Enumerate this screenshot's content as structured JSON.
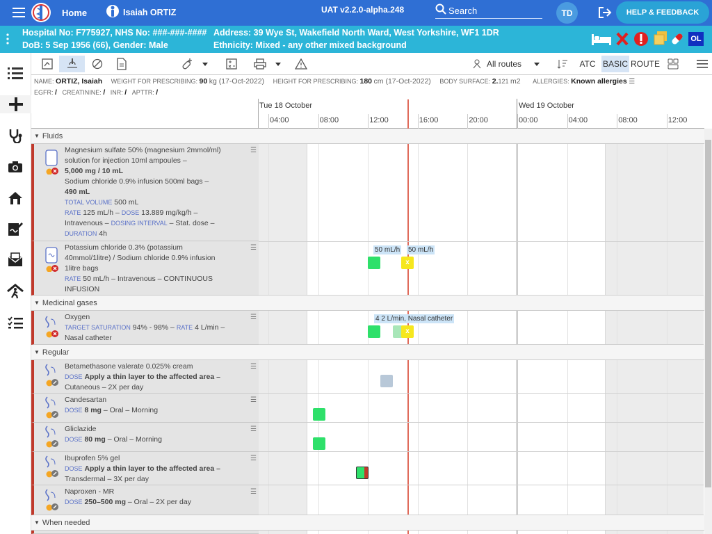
{
  "topbar": {
    "menu_icon": "hamburger-icon",
    "home": "Home",
    "patient_name": "Isaiah ORTIZ",
    "version": "UAT v2.2.0-alpha.248",
    "search": "Search",
    "user_initials": "TD",
    "help": "HELP & FEEDBACK"
  },
  "patient": {
    "hospital_no": "Hospital No: F775927, NHS No: ###-###-####",
    "dob": "DoB: 5 Sep 1956 (66), Gender: Male",
    "address": "Address: 39 Wye St, Wakefield North Ward, West Yorkshire, WF1 1DR",
    "ethnicity": "Ethnicity: Mixed - any other mixed background",
    "badge_ol": "OL"
  },
  "toolbar": {
    "routes": "All routes",
    "atc": "ATC",
    "basic": "BASIC",
    "route": "ROUTE"
  },
  "info": {
    "name_label": "NAME:",
    "name": "ORTIZ, Isaiah",
    "weight_label": "WEIGHT FOR PRESCRIBING:",
    "weight": "90",
    "weight_unit": "kg (17-Oct-2022)",
    "height_label": "HEIGHT FOR PRESCRIBING:",
    "height": "180",
    "height_unit": "cm (17-Oct-2022)",
    "bsa_label": "BODY SURFACE:",
    "bsa": "2.",
    "bsa_small": "121",
    "bsa_unit": "m2",
    "allergies_label": "ALLERGIES:",
    "allergies": "Known allergies",
    "egfr": "EGFR:",
    "egfr_v": "/",
    "creat": "CREATININE:",
    "creat_v": "/",
    "inr": "INR:",
    "inr_v": "/",
    "apttr": "APTTR:",
    "apttr_v": "/"
  },
  "timeline": {
    "day1": "Tue 18 October",
    "day2": "Wed 19 October",
    "times": [
      "04:00",
      "08:00",
      "12:00",
      "16:00",
      "20:00",
      "00:00",
      "04:00",
      "08:00",
      "12:00"
    ]
  },
  "sections": [
    "Fluids",
    "Medicinal gases",
    "Regular",
    "When needed"
  ],
  "meds": {
    "mag": {
      "l1": "Magnesium sulfate 50% (magnesium 2mmol/ml)",
      "l2": "solution for injection 10ml ampoules –",
      "l3": "5,000 mg / 10 mL",
      "l4": "Sodium chloride 0.9% infusion 500ml bags –",
      "l5": "490 mL",
      "tv_label": "TOTAL VOLUME",
      "tv": "500 mL",
      "rate_label": "RATE",
      "rate": "125 mL/h –",
      "dose_label": "DOSE",
      "dose": "13.889 mg/kg/h –",
      "route": "Intravenous –",
      "di_label": "DOSING INTERVAL",
      "di": "– Stat. dose –",
      "dur_label": "DURATION",
      "dur": "4h"
    },
    "kcl": {
      "l1": "Potassium chloride 0.3% (potassium",
      "l2": "40mmol/1litre) / Sodium chloride 0.9% infusion",
      "l3": "1litre bags",
      "rate_label": "RATE",
      "rate": "50 mL/h – Intravenous – CONTINUOUS",
      "l5": "INFUSION",
      "note1": "50 mL/h",
      "note2": "50 mL/h"
    },
    "oxy": {
      "l1": "Oxygen",
      "ts_label": "TARGET SATURATION",
      "ts": "94% - 98% –",
      "rate_label": "RATE",
      "rate": "4 L/min –",
      "l3": "Nasal catheter",
      "note": "4 2 L/min, Nasal catheter"
    },
    "beta": {
      "l1": "Betamethasone valerate 0.025% cream",
      "dose_label": "DOSE",
      "dose": "Apply a thin layer to the affected area –",
      "l3": "Cutaneous – 2X per day"
    },
    "cand": {
      "l1": "Candesartan",
      "dose_label": "DOSE",
      "dose": "8 mg",
      "rest": "– Oral – Morning"
    },
    "glic": {
      "l1": "Gliclazide",
      "dose_label": "DOSE",
      "dose": "80 mg",
      "rest": "– Oral – Morning"
    },
    "ibu": {
      "l1": "Ibuprofen 5% gel",
      "dose_label": "DOSE",
      "dose": "Apply a thin layer to the affected area –",
      "l3": "Transdermal – 3X per day"
    },
    "nap": {
      "l1": "Naproxen - MR",
      "dose_label": "DOSE",
      "dose": "250–500 mg",
      "rest": "– Oral – 2X per day"
    }
  },
  "colors": {
    "topbar": "#2f6fd4",
    "patbar": "#2cb5d8",
    "given": "#2ee06a",
    "due": "#f6e71e",
    "now_line": "#e06a5a",
    "pending": "#b8c8d8"
  }
}
